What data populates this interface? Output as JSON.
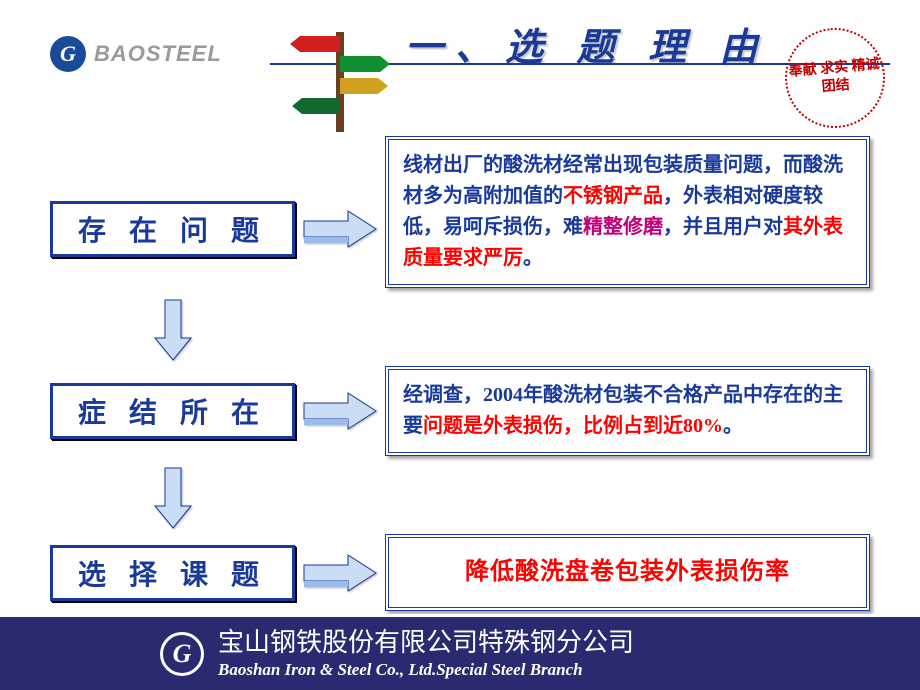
{
  "header": {
    "logo_glyph": "G",
    "logo_text": "BAOSTEEL",
    "title": "一、选 题 理 由",
    "seal_text": "奉献 求实 精诚 团结"
  },
  "colors": {
    "primary_blue": "#1a3a9a",
    "accent_red": "#ff0000",
    "accent_magenta": "#c0007a",
    "arrow_fill": "#9bbce8",
    "arrow_face": "#c9ddf5",
    "footer_bg": "#2a2a70",
    "seal_red": "#c00000"
  },
  "flow": {
    "boxes": [
      {
        "label": "存 在 问 题"
      },
      {
        "label": "症 结 所 在"
      },
      {
        "label": "选 择 课 题"
      }
    ],
    "right": [
      {
        "html_segments": [
          {
            "text": "线材出厂的酸洗材经常出现包装质量问题，而酸洗材多为高附加值的",
            "cls": ""
          },
          {
            "text": "不锈钢产品",
            "cls": "red"
          },
          {
            "text": "，外表相对硬度较低，易呵斥损伤，难",
            "cls": ""
          },
          {
            "text": "精整修磨",
            "cls": "magenta"
          },
          {
            "text": "，并且用户对",
            "cls": ""
          },
          {
            "text": "其外表质量要求严厉",
            "cls": "red"
          },
          {
            "text": "。",
            "cls": ""
          }
        ]
      },
      {
        "html_segments": [
          {
            "text": "经调查，2004年酸洗材包装不合格产品中存在的主要",
            "cls": ""
          },
          {
            "text": "问题是外表损伤，比例占到近80%",
            "cls": "red"
          },
          {
            "text": "。",
            "cls": ""
          }
        ]
      },
      {
        "center_text": "降低酸洗盘卷包装外表损伤率"
      }
    ]
  },
  "footer": {
    "logo_glyph": "G",
    "cn": "宝山钢铁股份有限公司特殊钢分公司",
    "en": "Baoshan Iron & Steel Co., Ltd.Special Steel Branch"
  }
}
